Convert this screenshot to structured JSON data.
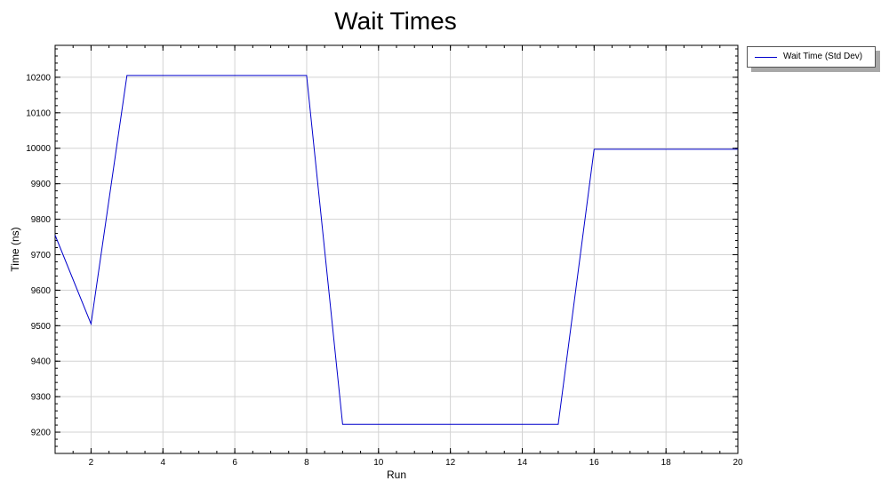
{
  "chart_data": {
    "type": "line",
    "title": "Wait Times",
    "xlabel": "Run",
    "ylabel": "Time (ns)",
    "xlim": [
      1,
      20
    ],
    "ylim": [
      9140,
      10290
    ],
    "x_ticks": [
      2,
      4,
      6,
      8,
      10,
      12,
      14,
      16,
      18,
      20
    ],
    "y_ticks": [
      9200,
      9300,
      9400,
      9500,
      9600,
      9700,
      9800,
      9900,
      10000,
      10100,
      10200
    ],
    "grid": true,
    "legend_position": "top-right outside",
    "series": [
      {
        "name": "Wait Time (Std Dev)",
        "color": "#0000cc",
        "x": [
          1,
          2,
          3,
          4,
          5,
          6,
          7,
          8,
          9,
          10,
          11,
          12,
          13,
          14,
          15,
          16,
          17,
          18,
          19,
          20
        ],
        "y": [
          9755,
          9505,
          10205,
          10205,
          10205,
          10205,
          10205,
          10205,
          9222,
          9222,
          9222,
          9222,
          9222,
          9222,
          9222,
          9997,
          9997,
          9997,
          9997,
          9997
        ]
      }
    ]
  }
}
